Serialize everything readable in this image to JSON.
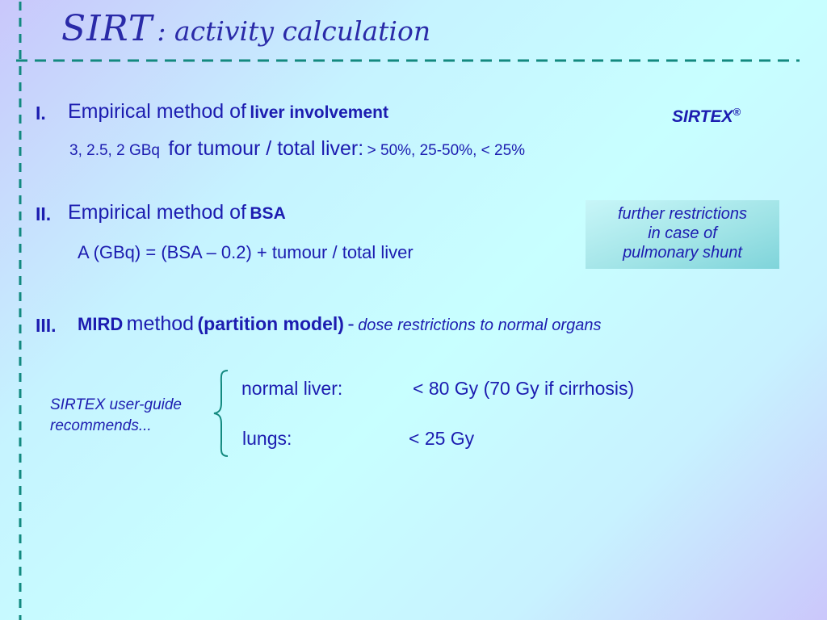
{
  "title": {
    "main": "SIRT",
    "sub": ": activity calculation"
  },
  "brand": {
    "name": "SIRTEX",
    "mark": "®"
  },
  "section1": {
    "numeral": "I.",
    "heading_prefix": "Empirical method of",
    "heading_emphasis": "liver involvement",
    "activities": "3,   2.5,  2  GBq",
    "middle": "for tumour / total liver:",
    "thresholds": "> 50%,   25-50%,  < 25%"
  },
  "section2": {
    "numeral": "II.",
    "heading_prefix": "Empirical method of",
    "heading_emphasis": "BSA",
    "formula": "A (GBq) = (BSA – 0.2) + tumour / total liver"
  },
  "callout": {
    "lines": [
      "further restrictions",
      "in case of",
      "pulmonary shunt"
    ]
  },
  "section3": {
    "numeral": "III.",
    "mird": "MIRD",
    "method": "method",
    "model": "(partition model)",
    "dash": "-",
    "restrictions": "dose restrictions to normal organs"
  },
  "guide": {
    "line1": "SIRTEX user-guide",
    "line2": "recommends..."
  },
  "limits": [
    {
      "organ": "normal liver:",
      "value": "< 80 Gy  (70 Gy if cirrhosis)"
    },
    {
      "organ": "lungs:",
      "value": "< 25 Gy"
    }
  ],
  "colors": {
    "text": "#1c1cb0",
    "dashes": "#13897f",
    "callout_box": "#9fe3e6"
  }
}
